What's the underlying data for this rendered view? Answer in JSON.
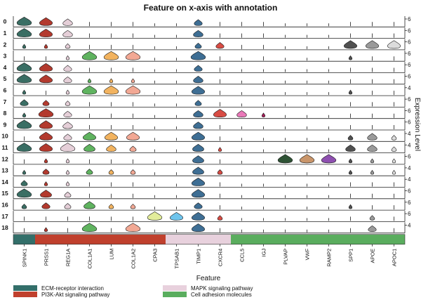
{
  "chart_data": {
    "type": "violin",
    "title": "Feature on x-axis with annotation",
    "xlabel": "Feature",
    "ylabel": "Expression Level",
    "clusters": [
      "0",
      "1",
      "2",
      "3",
      "4",
      "5",
      "6",
      "7",
      "8",
      "9",
      "10",
      "11",
      "12",
      "13",
      "14",
      "15",
      "16",
      "17",
      "18"
    ],
    "features": [
      "SPINK1",
      "PRSS1",
      "REG1A",
      "COL1A1",
      "LUM",
      "COL1A2",
      "CPA3",
      "TPSAB1",
      "TIMP1",
      "CXCR4",
      "CCL5",
      "IGJ",
      "PLVAP",
      "VWF",
      "RAMP2",
      "SPP1",
      "APOE",
      "APOC1"
    ],
    "feature_colors": [
      "#3a6e64",
      "#b33a2e",
      "#e5cfd8",
      "#5fb35f",
      "#f2b35f",
      "#f2a894",
      "#e2ec9a",
      "#6ec4ec",
      "#3e6e94",
      "#d84c44",
      "#e978b8",
      "#a51f5a",
      "#2e5234",
      "#c9956a",
      "#8e4fb0",
      "#505050",
      "#9a9a9a",
      "#dcdcdc"
    ],
    "row_max_ticks": [
      "6",
      "6",
      "6",
      "6",
      "6",
      "6",
      "4",
      "6",
      "6",
      "6",
      "4",
      "4",
      "6",
      "4",
      "4",
      "6",
      "6",
      "6",
      "4"
    ],
    "expression": [
      [
        0.9,
        0.8,
        0.6,
        0.1,
        0.1,
        0.1,
        0,
        0,
        0.5,
        0.1,
        0.1,
        0.1,
        0,
        0,
        0,
        0.1,
        0.1,
        0.1
      ],
      [
        0.9,
        0.8,
        0.6,
        0.1,
        0.1,
        0.1,
        0,
        0,
        0.6,
        0.1,
        0.1,
        0.1,
        0,
        0,
        0,
        0.1,
        0.1,
        0.1
      ],
      [
        0.2,
        0.2,
        0.3,
        0.1,
        0.1,
        0.1,
        0,
        0,
        0.4,
        0.5,
        0.1,
        0.1,
        0,
        0,
        0,
        0.8,
        0.8,
        0.8
      ],
      [
        0.1,
        0.1,
        0.2,
        0.9,
        0.9,
        0.9,
        0,
        0,
        0.9,
        0.1,
        0,
        0.1,
        0,
        0,
        0,
        0.2,
        0.1,
        0.1
      ],
      [
        0.9,
        0.8,
        0.5,
        0.1,
        0.1,
        0.1,
        0,
        0,
        0.5,
        0.1,
        0,
        0,
        0,
        0,
        0,
        0.1,
        0.1,
        0.1
      ],
      [
        0.9,
        0.8,
        0.5,
        0.2,
        0.2,
        0.2,
        0,
        0,
        0.6,
        0.1,
        0,
        0,
        0,
        0,
        0,
        0.1,
        0.1,
        0.1
      ],
      [
        0.2,
        0.1,
        0.2,
        0.9,
        0.9,
        0.9,
        0,
        0,
        0.8,
        0.1,
        0,
        0,
        0,
        0,
        0,
        0.2,
        0.1,
        0.1
      ],
      [
        0.5,
        0.4,
        0.3,
        0.1,
        0.1,
        0.1,
        0,
        0,
        0.4,
        0.1,
        0,
        0,
        0,
        0,
        0,
        0.1,
        0.1,
        0.1
      ],
      [
        0.2,
        0.9,
        0.5,
        0.1,
        0.1,
        0.1,
        0,
        0,
        0.6,
        0.8,
        0.6,
        0.2,
        0,
        0,
        0,
        0.1,
        0.1,
        0.1
      ],
      [
        0.9,
        0.8,
        0.6,
        0.1,
        0.1,
        0.1,
        0,
        0,
        0.6,
        0.1,
        0,
        0,
        0,
        0,
        0,
        0.1,
        0.1,
        0.1
      ],
      [
        0.1,
        0.8,
        0.5,
        0.8,
        0.8,
        0.8,
        0,
        0,
        0.8,
        0.1,
        0,
        0,
        0,
        0,
        0,
        0.3,
        0.6,
        0.3
      ],
      [
        0.9,
        0.8,
        0.9,
        0.7,
        0.6,
        0.4,
        0,
        0,
        0.7,
        0.2,
        0,
        0,
        0,
        0,
        0,
        0.6,
        0.6,
        0.3
      ],
      [
        0.1,
        0.2,
        0.2,
        0.1,
        0.1,
        0.1,
        0,
        0,
        0.7,
        0.1,
        0,
        0,
        0.9,
        0.9,
        0.9,
        0.2,
        0.2,
        0.2
      ],
      [
        0.2,
        0.4,
        0.2,
        0.4,
        0.3,
        0.3,
        0,
        0,
        0.7,
        0.3,
        0,
        0,
        0,
        0,
        0,
        0.2,
        0.2,
        0.2
      ],
      [
        0.4,
        0.2,
        0.2,
        0.1,
        0.1,
        0.1,
        0,
        0,
        0.8,
        0.1,
        0,
        0,
        0,
        0,
        0,
        0.1,
        0.1,
        0.1
      ],
      [
        0.9,
        0.7,
        0.4,
        0.1,
        0.1,
        0.1,
        0,
        0,
        0.8,
        0.1,
        0,
        0,
        0,
        0,
        0,
        0.1,
        0.1,
        0.1
      ],
      [
        0.3,
        0.5,
        0.4,
        0.7,
        0.3,
        0.3,
        0,
        0,
        0.5,
        0.1,
        0,
        0,
        0,
        0,
        0,
        0.2,
        0.1,
        0.1
      ],
      [
        0.1,
        0.1,
        0.1,
        0.1,
        0.1,
        0.1,
        0.9,
        0.8,
        0.8,
        0.3,
        0,
        0,
        0,
        0,
        0,
        0.1,
        0.3,
        0.1
      ],
      [
        0.1,
        0.2,
        0.1,
        0.9,
        0.1,
        0.9,
        0,
        0,
        0.8,
        0.1,
        0,
        0,
        0,
        0,
        0,
        0.1,
        0.5,
        0.1
      ]
    ],
    "annotation": {
      "categories": [
        "ECM-receptor interaction",
        "PI3K-Akt signaling pathway",
        "MAPK signaling pathway",
        "Cell adhesion molecules"
      ],
      "colors": [
        "#336f6a",
        "#c0402d",
        "#e8d1dd",
        "#5aad5e"
      ],
      "feature_category_index": [
        0,
        1,
        1,
        1,
        1,
        1,
        1,
        2,
        2,
        2,
        3,
        3,
        3,
        3,
        3,
        3,
        3,
        3
      ]
    }
  }
}
